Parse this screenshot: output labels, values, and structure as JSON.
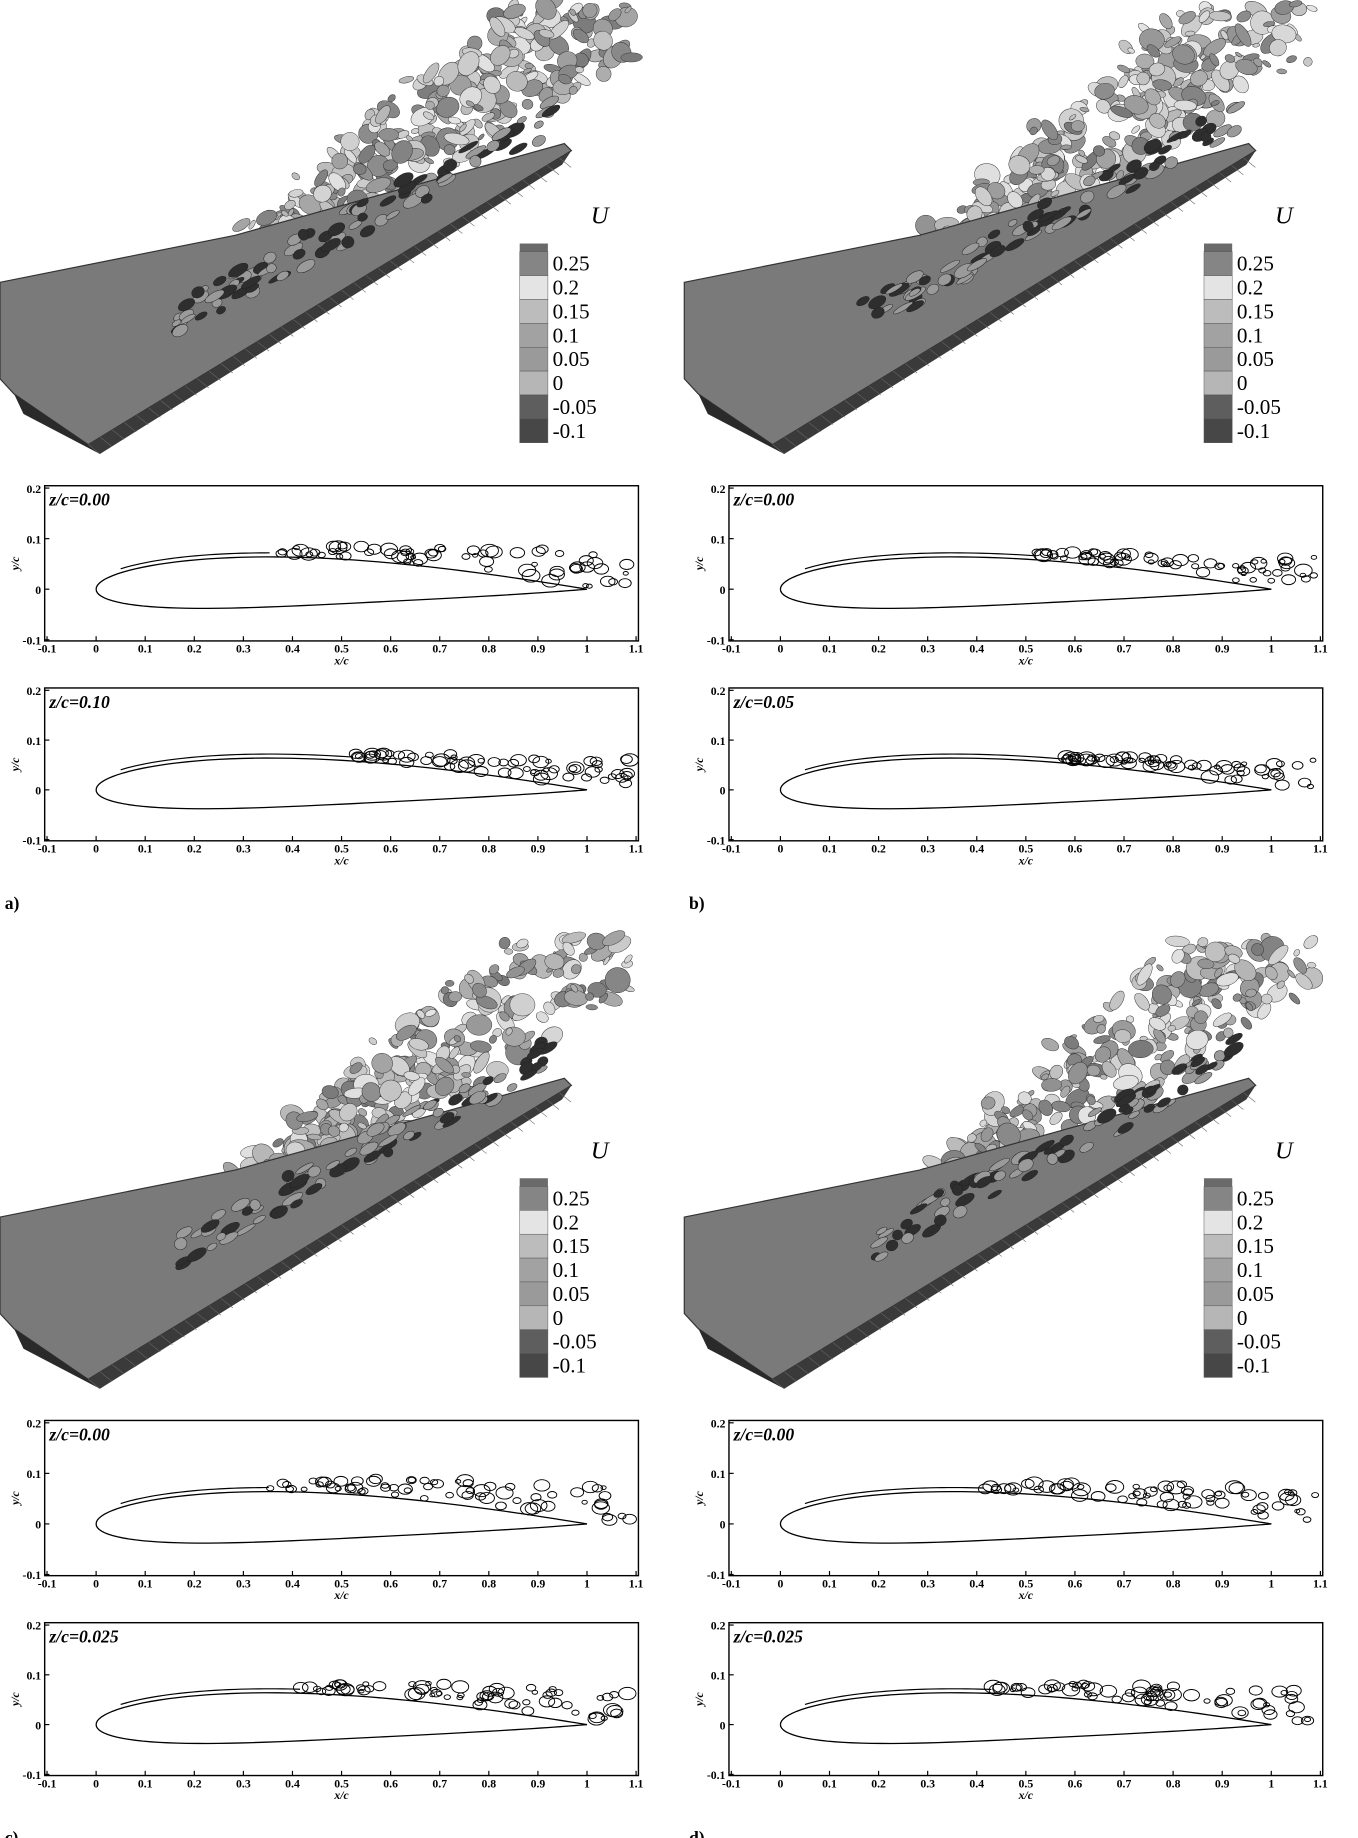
{
  "panels": [
    {
      "label": "a)",
      "slices": [
        {
          "label": "z/c=0.00"
        },
        {
          "label": "z/c=0.10"
        }
      ]
    },
    {
      "label": "b)",
      "slices": [
        {
          "label": "z/c=0.00"
        },
        {
          "label": "z/c=0.05"
        }
      ]
    },
    {
      "label": "c)",
      "slices": [
        {
          "label": "z/c=0.00"
        },
        {
          "label": "z/c=0.025"
        }
      ]
    },
    {
      "label": "d)",
      "slices": [
        {
          "label": "z/c=0.00"
        },
        {
          "label": "z/c=0.025"
        }
      ]
    }
  ],
  "legend": {
    "title": "U",
    "levels": [
      0.25,
      0.2,
      0.15,
      0.1,
      0.05,
      0,
      -0.05,
      -0.1
    ],
    "colors": [
      "#858585",
      "#e4e4e4",
      "#bcbcbc",
      "#a2a2a2",
      "#9a9a9a",
      "#b6b6b6",
      "#5e5e5e",
      "#474747"
    ]
  },
  "axes": {
    "xlabel": "x/c",
    "ylabel": "y/c",
    "xlim": [
      -0.1,
      1.1
    ],
    "ylim": [
      -0.1,
      0.2
    ],
    "xticks": [
      -0.1,
      0,
      0.1,
      0.2,
      0.3,
      0.4,
      0.5,
      0.6,
      0.7,
      0.8,
      0.9,
      1,
      1.1
    ],
    "yticks": [
      -0.1,
      0,
      0.1,
      0.2
    ]
  }
}
